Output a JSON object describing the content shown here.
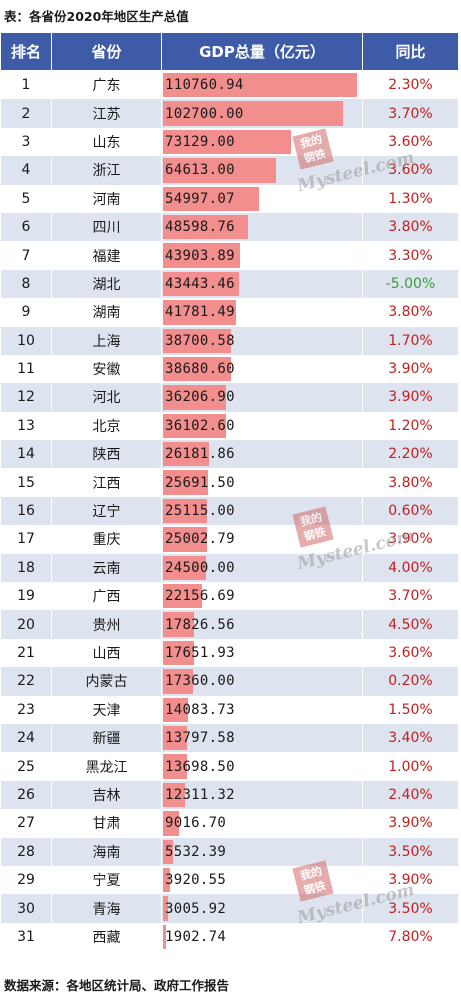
{
  "caption": "表：各省份2020年地区生产总值",
  "source": "数据来源：各地区统计局、政府工作报告",
  "colors": {
    "header_bg": "#3d5ba7",
    "bar": "#f28e8e",
    "stripe": "#dde4ef",
    "positive": "#c0201f",
    "negative": "#3a9c3a"
  },
  "watermark": {
    "seal_text": "我的钢铁",
    "brand": "Mysteel.com"
  },
  "chart_data": {
    "type": "table",
    "title": "表：各省份2020年地区生产总值",
    "columns": [
      "排名",
      "省份",
      "GDP总量（亿元）",
      "同比"
    ],
    "bar_max": 110760.94,
    "rows": [
      {
        "rank": "1",
        "province": "广东",
        "gdp": "110760.94",
        "value": 110760.94,
        "growth": "2.30%",
        "negative": false
      },
      {
        "rank": "2",
        "province": "江苏",
        "gdp": "102700.00",
        "value": 102700.0,
        "growth": "3.70%",
        "negative": false
      },
      {
        "rank": "3",
        "province": "山东",
        "gdp": "73129.00",
        "value": 73129.0,
        "growth": "3.60%",
        "negative": false
      },
      {
        "rank": "4",
        "province": "浙江",
        "gdp": "64613.00",
        "value": 64613.0,
        "growth": "3.60%",
        "negative": false
      },
      {
        "rank": "5",
        "province": "河南",
        "gdp": "54997.07",
        "value": 54997.07,
        "growth": "1.30%",
        "negative": false
      },
      {
        "rank": "6",
        "province": "四川",
        "gdp": "48598.76",
        "value": 48598.76,
        "growth": "3.80%",
        "negative": false
      },
      {
        "rank": "7",
        "province": "福建",
        "gdp": "43903.89",
        "value": 43903.89,
        "growth": "3.30%",
        "negative": false
      },
      {
        "rank": "8",
        "province": "湖北",
        "gdp": "43443.46",
        "value": 43443.46,
        "growth": "-5.00%",
        "negative": true
      },
      {
        "rank": "9",
        "province": "湖南",
        "gdp": "41781.49",
        "value": 41781.49,
        "growth": "3.80%",
        "negative": false
      },
      {
        "rank": "10",
        "province": "上海",
        "gdp": "38700.58",
        "value": 38700.58,
        "growth": "1.70%",
        "negative": false
      },
      {
        "rank": "11",
        "province": "安徽",
        "gdp": "38680.60",
        "value": 38680.6,
        "growth": "3.90%",
        "negative": false
      },
      {
        "rank": "12",
        "province": "河北",
        "gdp": "36206.90",
        "value": 36206.9,
        "growth": "3.90%",
        "negative": false
      },
      {
        "rank": "13",
        "province": "北京",
        "gdp": "36102.60",
        "value": 36102.6,
        "growth": "1.20%",
        "negative": false
      },
      {
        "rank": "14",
        "province": "陕西",
        "gdp": "26181.86",
        "value": 26181.86,
        "growth": "2.20%",
        "negative": false
      },
      {
        "rank": "15",
        "province": "江西",
        "gdp": "25691.50",
        "value": 25691.5,
        "growth": "3.80%",
        "negative": false
      },
      {
        "rank": "16",
        "province": "辽宁",
        "gdp": "25115.00",
        "value": 25115.0,
        "growth": "0.60%",
        "negative": false
      },
      {
        "rank": "17",
        "province": "重庆",
        "gdp": "25002.79",
        "value": 25002.79,
        "growth": "3.90%",
        "negative": false
      },
      {
        "rank": "18",
        "province": "云南",
        "gdp": "24500.00",
        "value": 24500.0,
        "growth": "4.00%",
        "negative": false
      },
      {
        "rank": "19",
        "province": "广西",
        "gdp": "22156.69",
        "value": 22156.69,
        "growth": "3.70%",
        "negative": false
      },
      {
        "rank": "20",
        "province": "贵州",
        "gdp": "17826.56",
        "value": 17826.56,
        "growth": "4.50%",
        "negative": false
      },
      {
        "rank": "21",
        "province": "山西",
        "gdp": "17651.93",
        "value": 17651.93,
        "growth": "3.60%",
        "negative": false
      },
      {
        "rank": "22",
        "province": "内蒙古",
        "gdp": "17360.00",
        "value": 17360.0,
        "growth": "0.20%",
        "negative": false
      },
      {
        "rank": "23",
        "province": "天津",
        "gdp": "14083.73",
        "value": 14083.73,
        "growth": "1.50%",
        "negative": false
      },
      {
        "rank": "24",
        "province": "新疆",
        "gdp": "13797.58",
        "value": 13797.58,
        "growth": "3.40%",
        "negative": false
      },
      {
        "rank": "25",
        "province": "黑龙江",
        "gdp": "13698.50",
        "value": 13698.5,
        "growth": "1.00%",
        "negative": false
      },
      {
        "rank": "26",
        "province": "吉林",
        "gdp": "12311.32",
        "value": 12311.32,
        "growth": "2.40%",
        "negative": false
      },
      {
        "rank": "27",
        "province": "甘肃",
        "gdp": "9016.70",
        "value": 9016.7,
        "growth": "3.90%",
        "negative": false
      },
      {
        "rank": "28",
        "province": "海南",
        "gdp": "5532.39",
        "value": 5532.39,
        "growth": "3.50%",
        "negative": false
      },
      {
        "rank": "29",
        "province": "宁夏",
        "gdp": "3920.55",
        "value": 3920.55,
        "growth": "3.90%",
        "negative": false
      },
      {
        "rank": "30",
        "province": "青海",
        "gdp": "3005.92",
        "value": 3005.92,
        "growth": "3.50%",
        "negative": false
      },
      {
        "rank": "31",
        "province": "西藏",
        "gdp": "1902.74",
        "value": 1902.74,
        "growth": "7.80%",
        "negative": false
      }
    ]
  }
}
